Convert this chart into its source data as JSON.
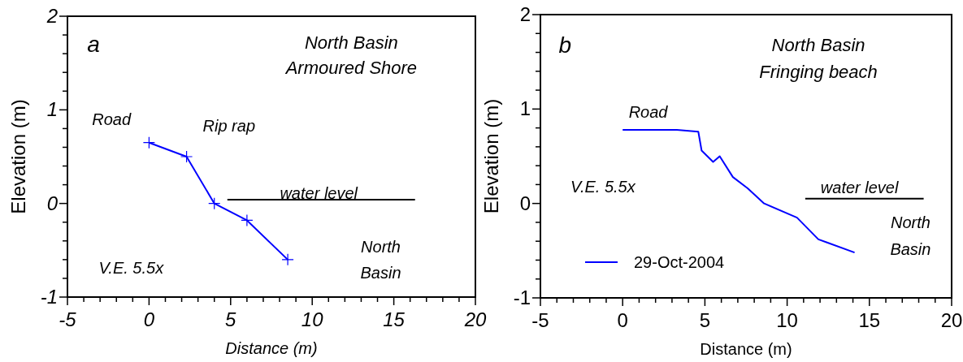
{
  "chart_data": [
    {
      "type": "line",
      "xlabel": "Distance (m)",
      "ylabel": "Elevation (m)",
      "xlim": [
        -5,
        20
      ],
      "ylim": [
        -1,
        2
      ],
      "xticks": [
        -5,
        {
          "value": -4,
          "label": null
        },
        {
          "value": -3,
          "label": null
        },
        {
          "value": -2,
          "label": null
        },
        {
          "value": -1,
          "label": null
        },
        0,
        {
          "value": 1,
          "label": null
        },
        {
          "value": 2,
          "label": null
        },
        {
          "value": 3,
          "label": null
        },
        {
          "value": 4,
          "label": null
        },
        5,
        {
          "value": 6,
          "label": null
        },
        {
          "value": 7,
          "label": null
        },
        {
          "value": 8,
          "label": null
        },
        {
          "value": 9,
          "label": null
        },
        10,
        {
          "value": 11,
          "label": null
        },
        {
          "value": 12,
          "label": null
        },
        {
          "value": 13,
          "label": null
        },
        {
          "value": 14,
          "label": null
        },
        15,
        {
          "value": 16,
          "label": null
        },
        {
          "value": 17,
          "label": null
        },
        {
          "value": 18,
          "label": null
        },
        {
          "value": 19,
          "label": null
        },
        20
      ],
      "yticks": [
        -1,
        {
          "value": -0.8,
          "label": null
        },
        {
          "value": -0.6,
          "label": null
        },
        {
          "value": -0.4,
          "label": null
        },
        {
          "value": -0.2,
          "label": null
        },
        0,
        {
          "value": 0.2,
          "label": null
        },
        {
          "value": 0.4,
          "label": null
        },
        {
          "value": 0.6,
          "label": null
        },
        {
          "value": 0.8,
          "label": null
        },
        1,
        {
          "value": 1.2,
          "label": null
        },
        {
          "value": 1.4,
          "label": null
        },
        {
          "value": 1.6,
          "label": null
        },
        {
          "value": 1.8,
          "label": null
        },
        2
      ],
      "grid": false,
      "legend": false,
      "series": [
        {
          "color": "#0000ff",
          "marker": "cross",
          "x": [
            0,
            2.3,
            4,
            6,
            8.5
          ],
          "values": [
            0.65,
            0.5,
            0,
            -0.18,
            -0.6
          ]
        },
        {
          "color": "#000000",
          "marker": "none",
          "x": [
            4.8,
            16.3
          ],
          "values": [
            0.04,
            0.04
          ]
        }
      ],
      "annotations": [
        "a",
        "North Basin",
        "Armoured Shore",
        "Road",
        "Rip rap",
        "water level",
        "North",
        "Basin",
        "V.E. 5.5x"
      ]
    },
    {
      "type": "line",
      "xlabel": "Distance (m)",
      "ylabel": "Elevation (m)",
      "xlim": [
        -5,
        20
      ],
      "ylim": [
        -1,
        2
      ],
      "xticks": [
        -5,
        {
          "value": -4,
          "label": null
        },
        {
          "value": -3,
          "label": null
        },
        {
          "value": -2,
          "label": null
        },
        {
          "value": -1,
          "label": null
        },
        0,
        {
          "value": 1,
          "label": null
        },
        {
          "value": 2,
          "label": null
        },
        {
          "value": 3,
          "label": null
        },
        {
          "value": 4,
          "label": null
        },
        5,
        {
          "value": 6,
          "label": null
        },
        {
          "value": 7,
          "label": null
        },
        {
          "value": 8,
          "label": null
        },
        {
          "value": 9,
          "label": null
        },
        10,
        {
          "value": 11,
          "label": null
        },
        {
          "value": 12,
          "label": null
        },
        {
          "value": 13,
          "label": null
        },
        {
          "value": 14,
          "label": null
        },
        15,
        {
          "value": 16,
          "label": null
        },
        {
          "value": 17,
          "label": null
        },
        {
          "value": 18,
          "label": null
        },
        {
          "value": 19,
          "label": null
        },
        20
      ],
      "yticks": [
        -1,
        {
          "value": -0.8,
          "label": null
        },
        {
          "value": -0.6,
          "label": null
        },
        {
          "value": -0.4,
          "label": null
        },
        {
          "value": -0.2,
          "label": null
        },
        0,
        {
          "value": 0.2,
          "label": null
        },
        {
          "value": 0.4,
          "label": null
        },
        {
          "value": 0.6,
          "label": null
        },
        {
          "value": 0.8,
          "label": null
        },
        1,
        {
          "value": 1.2,
          "label": null
        },
        {
          "value": 1.4,
          "label": null
        },
        {
          "value": 1.6,
          "label": null
        },
        {
          "value": 1.8,
          "label": null
        },
        2
      ],
      "grid": false,
      "legend": "bottom left",
      "series": [
        {
          "name": "29-Oct-2004",
          "color": "#0000ff",
          "marker": "none",
          "x": [
            0,
            3.3,
            4.6,
            4.8,
            5.5,
            5.9,
            6.7,
            7.6,
            8.6,
            10.6,
            11.9,
            14.1
          ],
          "values": [
            0.78,
            0.78,
            0.76,
            0.56,
            0.44,
            0.5,
            0.28,
            0.16,
            0,
            -0.15,
            -0.38,
            -0.52
          ]
        },
        {
          "color": "#000000",
          "marker": "none",
          "x": [
            11.1,
            18.3
          ],
          "values": [
            0.05,
            0.05
          ]
        }
      ],
      "annotations": [
        "b",
        "North Basin",
        "Fringing beach",
        "Road",
        "V.E. 5.5x",
        "water level",
        "North",
        "Basin"
      ]
    }
  ]
}
